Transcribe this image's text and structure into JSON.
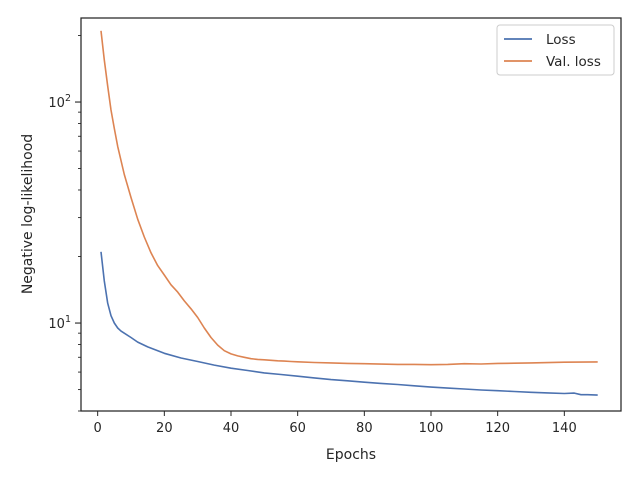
{
  "chart_data": {
    "type": "line",
    "xlabel": "Epochs",
    "ylabel": "Negative log-likelihood",
    "xlim": [
      -5,
      157
    ],
    "ylim": [
      4.0,
      240
    ],
    "yscale": "log",
    "x_ticks": [
      0,
      20,
      40,
      60,
      80,
      100,
      120,
      140
    ],
    "y_major_ticks": [
      {
        "value": 10,
        "label": "10",
        "exp": "1"
      },
      {
        "value": 100,
        "label": "10",
        "exp": "2"
      }
    ],
    "grid": false,
    "legend": "top-right",
    "series": [
      {
        "name": "Loss",
        "color": "#4c72b0",
        "x": [
          1,
          2,
          3,
          4,
          5,
          6,
          7,
          8,
          10,
          12,
          15,
          20,
          25,
          30,
          35,
          40,
          45,
          50,
          55,
          60,
          65,
          70,
          75,
          80,
          85,
          90,
          95,
          100,
          105,
          110,
          115,
          120,
          125,
          130,
          135,
          140,
          143,
          145,
          147,
          150
        ],
        "y": [
          21,
          15.5,
          12.3,
          10.8,
          10.0,
          9.5,
          9.2,
          9.0,
          8.6,
          8.2,
          7.8,
          7.3,
          6.95,
          6.7,
          6.45,
          6.25,
          6.1,
          5.95,
          5.85,
          5.75,
          5.65,
          5.55,
          5.48,
          5.4,
          5.33,
          5.27,
          5.2,
          5.13,
          5.08,
          5.03,
          4.98,
          4.94,
          4.9,
          4.86,
          4.83,
          4.8,
          4.82,
          4.74,
          4.74,
          4.72
        ]
      },
      {
        "name": "Val. loss",
        "color": "#dd8452",
        "x": [
          1,
          2,
          3,
          4,
          5,
          6,
          8,
          10,
          12,
          14,
          16,
          18,
          20,
          22,
          24,
          26,
          28,
          30,
          32,
          34,
          36,
          38,
          40,
          42,
          44,
          46,
          48,
          50,
          52,
          54,
          56,
          58,
          60,
          65,
          70,
          75,
          80,
          85,
          90,
          95,
          100,
          105,
          110,
          115,
          120,
          125,
          130,
          135,
          140,
          145,
          150
        ],
        "y": [
          210,
          155,
          118,
          92,
          76,
          63,
          47,
          37,
          29.5,
          24.5,
          20.8,
          18.2,
          16.5,
          14.9,
          13.8,
          12.6,
          11.6,
          10.6,
          9.5,
          8.6,
          7.95,
          7.5,
          7.25,
          7.1,
          7.0,
          6.9,
          6.85,
          6.82,
          6.78,
          6.75,
          6.73,
          6.7,
          6.68,
          6.63,
          6.6,
          6.57,
          6.55,
          6.52,
          6.5,
          6.5,
          6.48,
          6.5,
          6.55,
          6.53,
          6.57,
          6.58,
          6.6,
          6.62,
          6.65,
          6.66,
          6.67
        ]
      }
    ]
  }
}
